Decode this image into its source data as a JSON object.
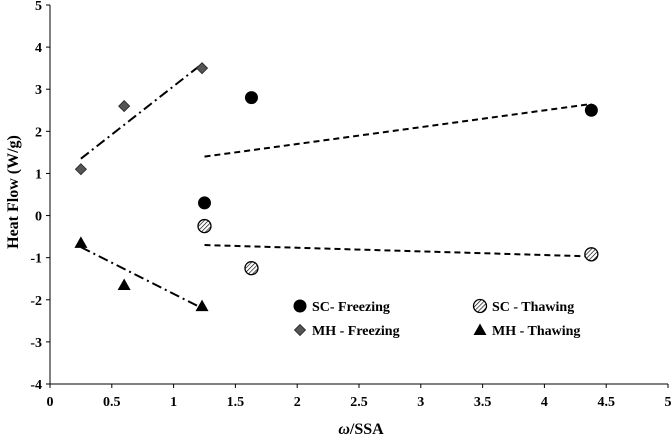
{
  "chart_data": {
    "type": "scatter",
    "xlabel": "ω/SSA",
    "ylabel": "Heat Flow (W/g)",
    "xlim": [
      0,
      5
    ],
    "ylim": [
      -4,
      5
    ],
    "x_ticks": [
      "0",
      "0.5",
      "1",
      "1.5",
      "2",
      "2.5",
      "3",
      "3.5",
      "4",
      "4.5",
      "5"
    ],
    "y_ticks": [
      "-4",
      "-3",
      "-2",
      "-1",
      "0",
      "1",
      "2",
      "3",
      "4",
      "5"
    ],
    "grid": false,
    "series": [
      {
        "name": "SC- Freezing",
        "marker": "filled-circle",
        "points": [
          [
            1.25,
            0.3
          ],
          [
            1.63,
            2.8
          ],
          [
            4.38,
            2.5
          ]
        ],
        "trendline": {
          "style": "dashed",
          "from": [
            1.25,
            1.4
          ],
          "to": [
            4.38,
            2.65
          ]
        }
      },
      {
        "name": "SC - Thawing",
        "marker": "hatched-circle",
        "points": [
          [
            1.25,
            -0.25
          ],
          [
            1.63,
            -1.25
          ],
          [
            4.38,
            -0.92
          ]
        ],
        "trendline": {
          "style": "dashed",
          "from": [
            1.25,
            -0.7
          ],
          "to": [
            4.38,
            -0.97
          ]
        }
      },
      {
        "name": "MH - Freezing",
        "marker": "diamond",
        "points": [
          [
            0.25,
            1.1
          ],
          [
            0.6,
            2.6
          ],
          [
            1.23,
            3.5
          ]
        ],
        "trendline": {
          "style": "dash-dot",
          "from": [
            0.25,
            1.35
          ],
          "to": [
            1.23,
            3.6
          ]
        }
      },
      {
        "name": "MH - Thawing",
        "marker": "triangle",
        "points": [
          [
            0.25,
            -0.65
          ],
          [
            0.6,
            -1.65
          ],
          [
            1.23,
            -2.15
          ]
        ],
        "trendline": {
          "style": "dash-dot",
          "from": [
            0.25,
            -0.75
          ],
          "to": [
            1.23,
            -2.2
          ]
        }
      }
    ],
    "legend": {
      "placement": "bottom-right",
      "entries": [
        "SC- Freezing",
        "SC - Thawing",
        "MH - Freezing",
        "MH - Thawing"
      ]
    }
  }
}
